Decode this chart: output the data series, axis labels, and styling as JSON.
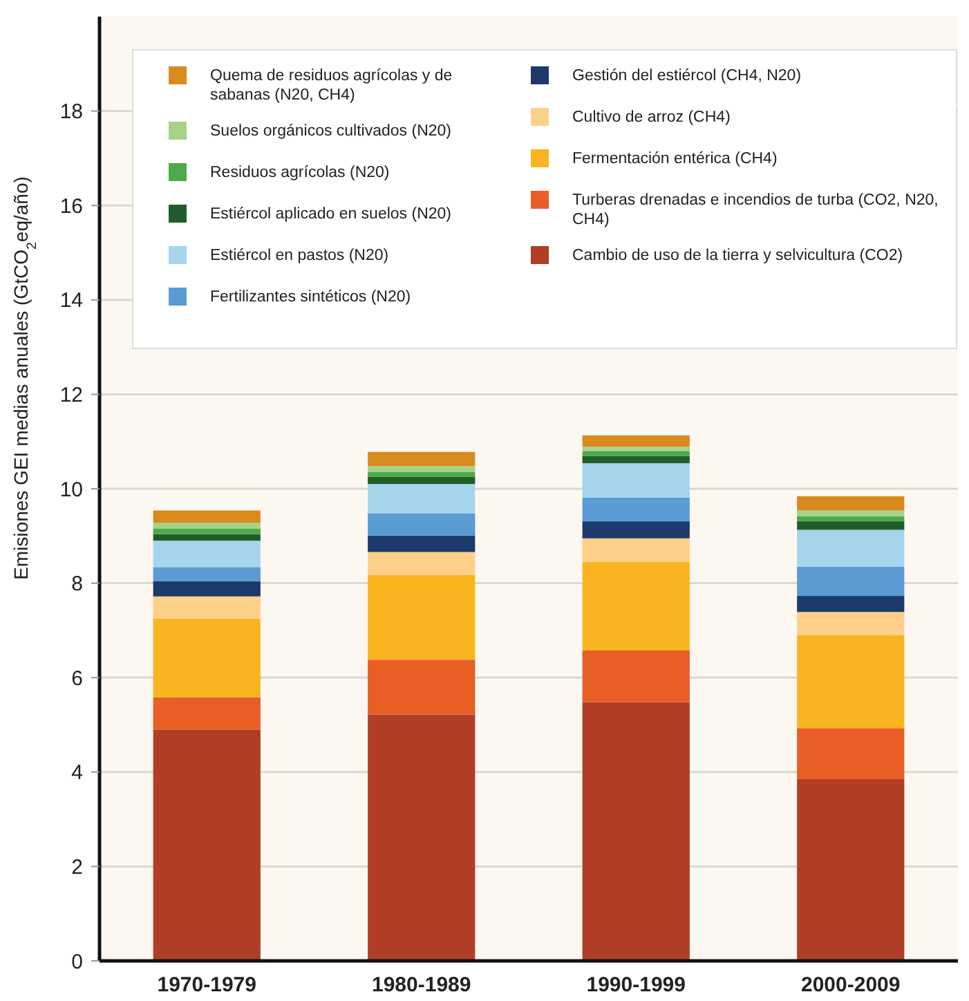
{
  "chart_data": {
    "type": "bar",
    "stacked": true,
    "ylabel": "Emisiones GEI medias anuales (GtCO$_{2}$eq/año)",
    "categories": [
      "1970-1979",
      "1980-1989",
      "1990-1999",
      "2000-2009"
    ],
    "ylim": [
      0,
      20
    ],
    "yticks": [
      0,
      2,
      4,
      6,
      8,
      10,
      12,
      14,
      16,
      18
    ],
    "grid": "y",
    "legend": "top",
    "series": [
      {
        "name": "Cambio de uso de la tierra y selvicultura (CO2)",
        "color": "#b03e25",
        "values": [
          4.9,
          5.22,
          5.48,
          3.85
        ]
      },
      {
        "name": "Turberas drenadas e incendios de turba (CO2, N20, CH4)",
        "color": "#e85e24",
        "values": [
          0.68,
          1.16,
          1.1,
          1.08
        ]
      },
      {
        "name": "Fermentación entérica (CH4)",
        "color": "#f9b51f",
        "values": [
          1.67,
          1.79,
          1.87,
          1.97
        ]
      },
      {
        "name": "Cultivo de arroz (CH4)",
        "color": "#fdd08a",
        "values": [
          0.47,
          0.49,
          0.5,
          0.49
        ]
      },
      {
        "name": "Gestión del estiércol (CH4, N20)",
        "color": "#1c3a6b",
        "values": [
          0.32,
          0.35,
          0.36,
          0.34
        ]
      },
      {
        "name": "Fertilizantes sintéticos (N20)",
        "color": "#5a9bd3",
        "values": [
          0.3,
          0.47,
          0.5,
          0.62
        ]
      },
      {
        "name": "Estiércol en pastos (N20)",
        "color": "#a6d5ee",
        "values": [
          0.56,
          0.62,
          0.73,
          0.78
        ]
      },
      {
        "name": "Estiércol aplicado en suelos (N20)",
        "color": "#1f5e2c",
        "values": [
          0.14,
          0.15,
          0.15,
          0.18
        ]
      },
      {
        "name": "Residuos agrícolas (N20)",
        "color": "#4daa48",
        "values": [
          0.12,
          0.11,
          0.11,
          0.11
        ]
      },
      {
        "name": "Suelos orgánicos cultivados (N20)",
        "color": "#a6d38a",
        "values": [
          0.12,
          0.12,
          0.09,
          0.12
        ]
      },
      {
        "name": "Quema de residuos agrícolas y de sabanas (N20, CH4)",
        "color": "#d98a1f",
        "values": [
          0.26,
          0.3,
          0.24,
          0.3
        ]
      }
    ]
  }
}
